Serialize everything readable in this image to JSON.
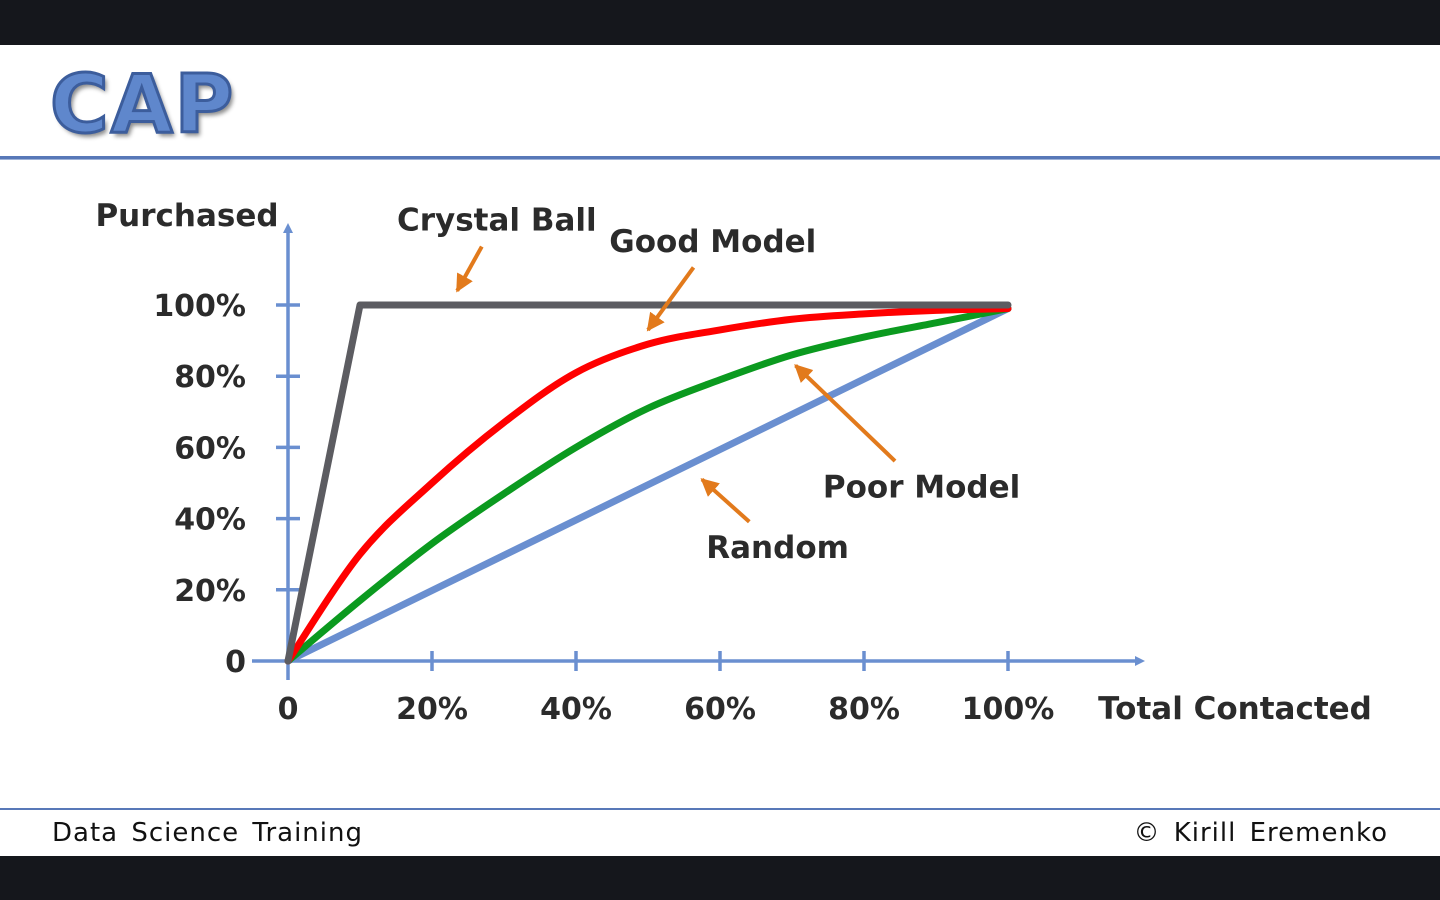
{
  "slide": {
    "title": "CAP",
    "footer_left": "Data Science Training",
    "footer_right": "© Kirill Eremenko"
  },
  "colors": {
    "axis": "#6a8fd0",
    "crystal_ball": "#5c5c61",
    "good_model": "#ff0000",
    "poor_model": "#0b9a1f",
    "random": "#6a8fd0",
    "arrow": "#e27a1c",
    "title_fill": "#5f87cc"
  },
  "chart_data": {
    "type": "line",
    "xlabel": "Total Contacted",
    "ylabel": "Purchased",
    "xlim": [
      0,
      100
    ],
    "ylim": [
      0,
      100
    ],
    "x_ticks": [
      0,
      20,
      40,
      60,
      80,
      100
    ],
    "x_tick_labels": [
      "0",
      "20%",
      "40%",
      "60%",
      "80%",
      "100%"
    ],
    "y_ticks": [
      0,
      20,
      40,
      60,
      80,
      100
    ],
    "y_tick_labels": [
      "0",
      "20%",
      "40%",
      "60%",
      "80%",
      "100%"
    ],
    "grid": false,
    "series": [
      {
        "name": "Crystal Ball",
        "color": "#5c5c61",
        "points": [
          [
            0,
            0
          ],
          [
            10,
            100
          ],
          [
            100,
            100
          ]
        ]
      },
      {
        "name": "Good Model",
        "color": "#ff0000",
        "points": [
          [
            0,
            0
          ],
          [
            10,
            30
          ],
          [
            20,
            50
          ],
          [
            30,
            67
          ],
          [
            40,
            81
          ],
          [
            50,
            89
          ],
          [
            60,
            93
          ],
          [
            70,
            96
          ],
          [
            80,
            97.5
          ],
          [
            90,
            98.5
          ],
          [
            100,
            99
          ]
        ]
      },
      {
        "name": "Poor Model",
        "color": "#0b9a1f",
        "points": [
          [
            0,
            0
          ],
          [
            10,
            17
          ],
          [
            20,
            33
          ],
          [
            30,
            47
          ],
          [
            40,
            60
          ],
          [
            50,
            71
          ],
          [
            60,
            79
          ],
          [
            70,
            86
          ],
          [
            80,
            91
          ],
          [
            90,
            95
          ],
          [
            100,
            99
          ]
        ]
      },
      {
        "name": "Random",
        "color": "#6a8fd0",
        "points": [
          [
            0,
            0
          ],
          [
            100,
            99
          ]
        ]
      }
    ],
    "annotations": [
      {
        "text": "Crystal Ball",
        "target": [
          23.5,
          104
        ],
        "label_at": [
          29,
          124
        ]
      },
      {
        "text": "Good Model",
        "target": [
          50,
          93
        ],
        "label_at": [
          59,
          118
        ]
      },
      {
        "text": "Poor Model",
        "target": [
          70.5,
          83
        ],
        "label_at": [
          88,
          49
        ]
      },
      {
        "text": "Random",
        "target": [
          57.5,
          51
        ],
        "label_at": [
          68,
          32
        ]
      }
    ]
  }
}
